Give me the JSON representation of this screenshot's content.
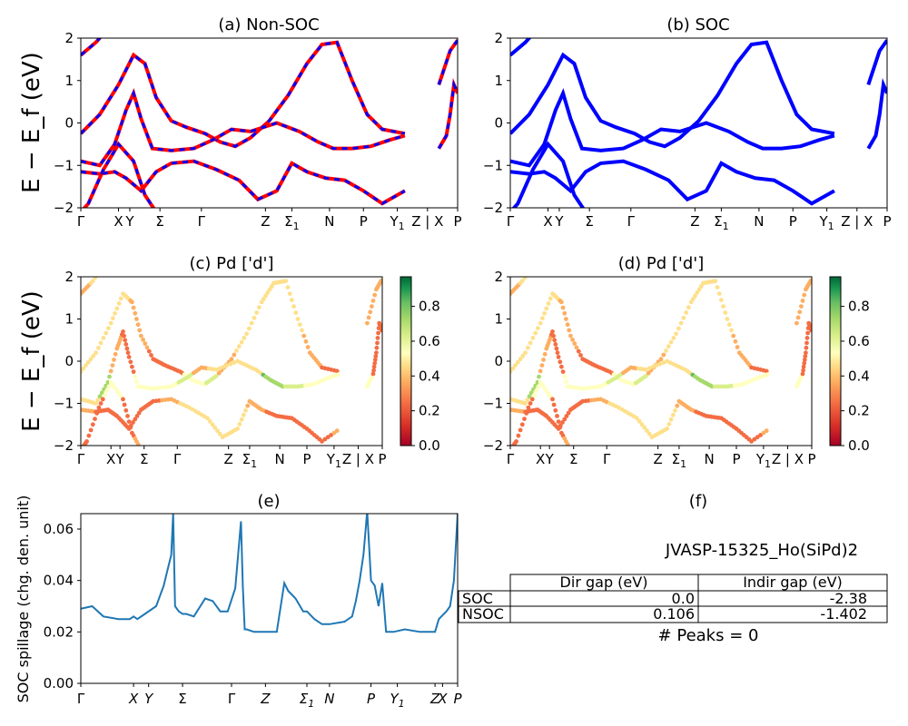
{
  "chart_data": [
    {
      "type": "line",
      "panel": "a",
      "title": "(a) Non-SOC",
      "ylabel": "E − E_f (eV)",
      "ylim": [
        -2,
        2
      ],
      "yticks": [
        "2",
        "1",
        "0",
        "−1",
        "−2"
      ],
      "xticks": [
        "Γ",
        "X",
        "Y",
        "Σ",
        "Γ",
        "Z",
        "Σ1",
        "N",
        "P",
        "Y1",
        "Z | X",
        "P"
      ],
      "series_colors": [
        "#ff0000",
        "#0000ff"
      ],
      "note": "",
      "bands": [
        [
          [
            0.0,
            1.6
          ],
          [
            0.04,
            1.9
          ],
          [
            0.09,
            2.4
          ]
        ],
        [
          [
            0.0,
            -0.25
          ],
          [
            0.05,
            0.2
          ],
          [
            0.1,
            0.9
          ],
          [
            0.14,
            1.6
          ],
          [
            0.17,
            1.4
          ],
          [
            0.2,
            0.6
          ],
          [
            0.24,
            0.05
          ],
          [
            0.28,
            -0.1
          ],
          [
            0.33,
            -0.25
          ],
          [
            0.37,
            -0.45
          ],
          [
            0.41,
            -0.55
          ],
          [
            0.45,
            -0.35
          ],
          [
            0.5,
            0.05
          ],
          [
            0.55,
            0.65
          ],
          [
            0.6,
            1.4
          ],
          [
            0.64,
            1.85
          ],
          [
            0.68,
            1.9
          ],
          [
            0.72,
            1.0
          ],
          [
            0.76,
            0.2
          ],
          [
            0.8,
            -0.15
          ],
          [
            0.86,
            -0.25
          ]
        ],
        [
          [
            0.0,
            -0.9
          ],
          [
            0.05,
            -1.0
          ],
          [
            0.09,
            -0.5
          ],
          [
            0.12,
            0.3
          ],
          [
            0.14,
            0.7
          ],
          [
            0.16,
            0.1
          ],
          [
            0.19,
            -0.6
          ],
          [
            0.24,
            -0.65
          ],
          [
            0.3,
            -0.6
          ],
          [
            0.35,
            -0.4
          ],
          [
            0.4,
            -0.15
          ],
          [
            0.45,
            -0.2
          ],
          [
            0.52,
            0.0
          ],
          [
            0.58,
            -0.2
          ],
          [
            0.63,
            -0.45
          ],
          [
            0.67,
            -0.6
          ],
          [
            0.72,
            -0.6
          ],
          [
            0.77,
            -0.55
          ],
          [
            0.82,
            -0.4
          ],
          [
            0.86,
            -0.3
          ]
        ],
        [
          [
            0.0,
            -1.15
          ],
          [
            0.05,
            -1.2
          ],
          [
            0.09,
            -1.15
          ],
          [
            0.12,
            -1.3
          ],
          [
            0.16,
            -1.6
          ],
          [
            0.2,
            -1.15
          ],
          [
            0.24,
            -0.95
          ],
          [
            0.3,
            -0.9
          ],
          [
            0.36,
            -1.1
          ],
          [
            0.42,
            -1.35
          ],
          [
            0.47,
            -1.8
          ],
          [
            0.52,
            -1.6
          ],
          [
            0.56,
            -0.95
          ],
          [
            0.6,
            -1.15
          ],
          [
            0.65,
            -1.3
          ],
          [
            0.7,
            -1.35
          ],
          [
            0.75,
            -1.6
          ],
          [
            0.8,
            -1.9
          ],
          [
            0.86,
            -1.6
          ]
        ],
        [
          [
            0.0,
            -2.1
          ],
          [
            0.02,
            -1.9
          ],
          [
            0.06,
            -1.1
          ],
          [
            0.1,
            -0.5
          ],
          [
            0.14,
            -0.9
          ],
          [
            0.17,
            -1.7
          ],
          [
            0.2,
            -2.1
          ]
        ],
        [
          [
            0.95,
            0.9
          ],
          [
            0.98,
            1.7
          ],
          [
            1.0,
            1.95
          ]
        ],
        [
          [
            0.95,
            -0.6
          ],
          [
            0.97,
            -0.3
          ],
          [
            0.98,
            0.2
          ],
          [
            0.99,
            0.9
          ],
          [
            1.0,
            0.7
          ]
        ]
      ]
    },
    {
      "type": "line",
      "panel": "b",
      "title": "(b) SOC",
      "ylim": [
        -2,
        2
      ],
      "yticks": [
        "2",
        "1",
        "0",
        "−1",
        "−2"
      ],
      "xticks": [
        "Γ",
        "X",
        "Y",
        "Σ",
        "Γ",
        "Z",
        "Σ1",
        "N",
        "P",
        "Y1",
        "Z | X",
        "P"
      ],
      "series_colors": [
        "#0000ff"
      ]
    },
    {
      "type": "scatter",
      "panel": "c",
      "title": "(c)  Pd ['d']",
      "ylabel": "E − E_f (eV)",
      "ylim": [
        -2,
        2
      ],
      "yticks": [
        "2",
        "1",
        "0",
        "−1",
        "−2"
      ],
      "xticks": [
        "Γ",
        "X",
        "Y",
        "Σ",
        "Γ",
        "Z",
        "Σ1",
        "N",
        "P",
        "Y1",
        "Z | X",
        "P"
      ],
      "colorbar": {
        "cmap": "RdYlGn",
        "range": [
          0.0,
          0.97
        ],
        "ticks": [
          "0.0",
          "0.2",
          "0.4",
          "0.6",
          "0.8"
        ]
      }
    },
    {
      "type": "scatter",
      "panel": "d",
      "title": "(d) Pd ['d']",
      "ylim": [
        -2,
        2
      ],
      "yticks": [
        "2",
        "1",
        "0",
        "−1",
        "−2"
      ],
      "xticks": [
        "Γ",
        "X",
        "Y",
        "Σ",
        "Γ",
        "Z",
        "Σ1",
        "N",
        "P",
        "Y1",
        "Z | X",
        "P"
      ],
      "colorbar": {
        "cmap": "RdYlGn",
        "range": [
          0.0,
          0.97
        ],
        "ticks": [
          "0.0",
          "0.2",
          "0.4",
          "0.6",
          "0.8"
        ]
      }
    },
    {
      "type": "line",
      "panel": "e",
      "title": "(e)",
      "ylabel": "SOC spillage (chg. den. unit)",
      "ylim": [
        0.0,
        0.066
      ],
      "yticks": [
        "0.06",
        "0.04",
        "0.02",
        "0.00"
      ],
      "xticks": [
        "Γ",
        "X",
        "Y",
        "Σ",
        "Γ",
        "Z",
        "Σ1",
        "N",
        "P",
        "Y1",
        "Z",
        "X",
        "P"
      ],
      "color": "#1f77b4",
      "x": [
        0.0,
        0.03,
        0.06,
        0.1,
        0.13,
        0.14,
        0.15,
        0.17,
        0.2,
        0.22,
        0.24,
        0.245,
        0.25,
        0.26,
        0.27,
        0.28,
        0.3,
        0.33,
        0.35,
        0.37,
        0.39,
        0.41,
        0.425,
        0.43,
        0.435,
        0.44,
        0.46,
        0.49,
        0.52,
        0.54,
        0.55,
        0.57,
        0.59,
        0.6,
        0.62,
        0.64,
        0.66,
        0.7,
        0.72,
        0.73,
        0.74,
        0.75,
        0.76,
        0.77,
        0.78,
        0.79,
        0.8,
        0.81,
        0.83,
        0.86,
        0.9,
        0.94,
        0.95,
        0.97,
        0.98,
        0.99,
        1.0
      ],
      "values": [
        0.029,
        0.03,
        0.026,
        0.025,
        0.025,
        0.026,
        0.025,
        0.027,
        0.03,
        0.038,
        0.05,
        0.066,
        0.03,
        0.028,
        0.027,
        0.027,
        0.026,
        0.033,
        0.032,
        0.028,
        0.028,
        0.037,
        0.063,
        0.038,
        0.021,
        0.021,
        0.02,
        0.02,
        0.02,
        0.039,
        0.036,
        0.033,
        0.028,
        0.028,
        0.025,
        0.023,
        0.023,
        0.024,
        0.026,
        0.032,
        0.04,
        0.05,
        0.067,
        0.04,
        0.038,
        0.03,
        0.039,
        0.02,
        0.02,
        0.021,
        0.02,
        0.02,
        0.025,
        0.028,
        0.03,
        0.04,
        0.066
      ]
    },
    {
      "type": "table",
      "panel": "f",
      "title": "(f)",
      "caption": "JVASP-15325_Ho(SiPd)2",
      "columns": [
        "Dir gap (eV)",
        "Indir gap (eV)"
      ],
      "rows": [
        {
          "label": "SOC",
          "dir": "0.0",
          "indir": "-2.38"
        },
        {
          "label": "NSOC",
          "dir": "0.106",
          "indir": "-1.402"
        }
      ],
      "footer": "# Peaks = 0"
    }
  ]
}
